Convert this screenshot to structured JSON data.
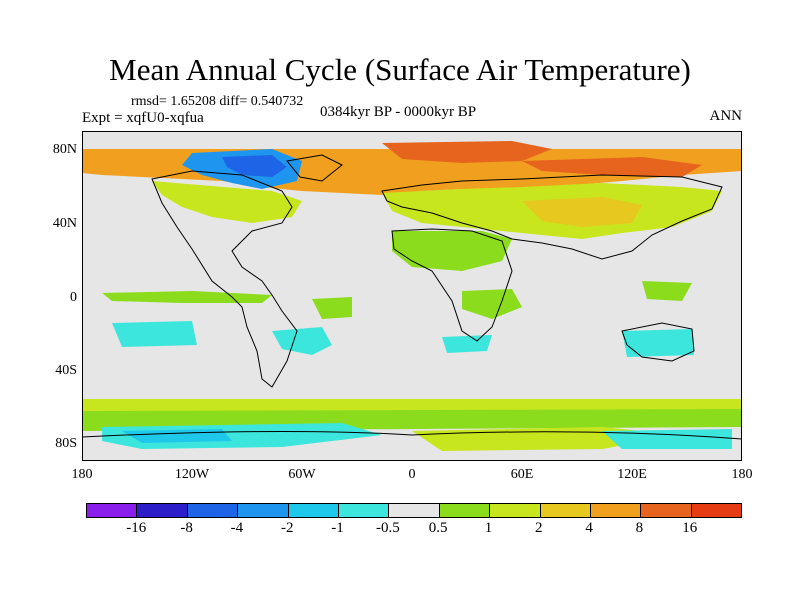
{
  "title": "Mean Annual Cycle (Surface Air Temperature)",
  "stats_text": "rmsd= 1.65208 diff= 0.540732",
  "experiment": "Expt = xqfU0-xqfua",
  "period": "0384kyr BP - 0000kyr BP",
  "season": "ANN",
  "lat_labels": [
    "80N",
    "40N",
    "0",
    "40S",
    "80S"
  ],
  "lon_labels": [
    "180",
    "120W",
    "60W",
    "0",
    "60E",
    "120E",
    "180"
  ],
  "colorbar": {
    "labels": [
      "-16",
      "-8",
      "-4",
      "-2",
      "-1",
      "-0.5",
      "0.5",
      "1",
      "2",
      "4",
      "8",
      "16"
    ],
    "colors": [
      "#8a1eeb",
      "#2c1ec8",
      "#1e64e6",
      "#1e96f0",
      "#1ec8eb",
      "#3ce6dc",
      "#e6e6e6",
      "#8cdc1e",
      "#c8e61e",
      "#e6c81e",
      "#f0a01e",
      "#e6641e",
      "#e63c14"
    ]
  },
  "colors": {
    "neutral": "#e6e6e6",
    "positive_small": "#8cdc1e",
    "positive_mid": "#c8e61e",
    "positive_high": "#e6c81e",
    "positive_strong": "#f0a01e",
    "positive_very": "#e6641e",
    "negative_small": "#3ce6dc",
    "negative_mid": "#1ec8eb",
    "negative_high": "#1e96f0",
    "negative_strong": "#1e64e6",
    "coastline": "#000000"
  }
}
